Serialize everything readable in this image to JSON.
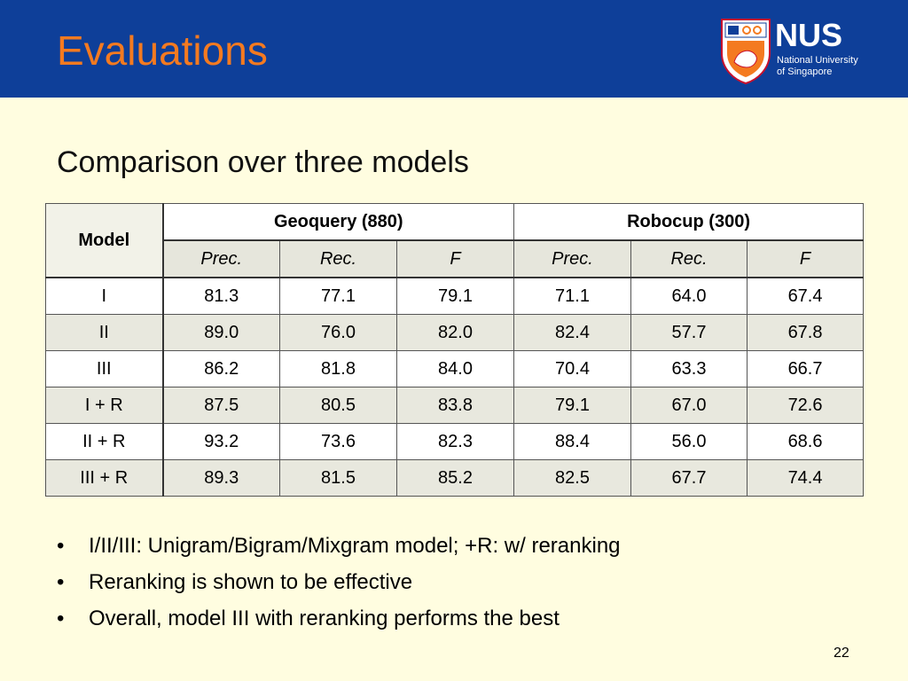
{
  "header": {
    "title": "Evaluations",
    "logo": {
      "name": "NUS",
      "line1": "National University",
      "line2": "of Singapore"
    }
  },
  "subtitle": "Comparison over three models",
  "table": {
    "model_header": "Model",
    "groups": [
      "Geoquery (880)",
      "Robocup (300)"
    ],
    "subheaders": [
      "Prec.",
      "Rec.",
      "F",
      "Prec.",
      "Rec.",
      "F"
    ],
    "rows": [
      {
        "model": "I",
        "cells": [
          {
            "v": "81.3",
            "b": false
          },
          {
            "v": "77.1",
            "b": false
          },
          {
            "v": "79.1",
            "b": false
          },
          {
            "v": "71.1",
            "b": false
          },
          {
            "v": "64.0",
            "b": true
          },
          {
            "v": "67.4",
            "b": false
          }
        ]
      },
      {
        "model": "II",
        "cells": [
          {
            "v": "89.0",
            "b": true
          },
          {
            "v": "76.0",
            "b": false
          },
          {
            "v": "82.0",
            "b": false
          },
          {
            "v": "82.4",
            "b": true
          },
          {
            "v": "57.7",
            "b": false
          },
          {
            "v": "67.8",
            "b": true
          }
        ]
      },
      {
        "model": "III",
        "cells": [
          {
            "v": "86.2",
            "b": false
          },
          {
            "v": "81.8",
            "b": true
          },
          {
            "v": "84.0",
            "b": true
          },
          {
            "v": "70.4",
            "b": false
          },
          {
            "v": "63.3",
            "b": false
          },
          {
            "v": "66.7",
            "b": false
          }
        ]
      },
      {
        "model": "I + R",
        "cells": [
          {
            "v": "87.5",
            "b": false
          },
          {
            "v": "80.5",
            "b": false
          },
          {
            "v": "83.8",
            "b": false
          },
          {
            "v": "79.1",
            "b": false
          },
          {
            "v": "67.0",
            "b": false
          },
          {
            "v": "72.6",
            "b": false
          }
        ]
      },
      {
        "model": "II + R",
        "cells": [
          {
            "v": "93.2",
            "b": false
          },
          {
            "v": "73.6",
            "b": false
          },
          {
            "v": "82.3",
            "b": false
          },
          {
            "v": "88.4",
            "b": false
          },
          {
            "v": "56.0",
            "b": false
          },
          {
            "v": "68.6",
            "b": false
          }
        ]
      },
      {
        "model": "III + R",
        "cells": [
          {
            "v": "89.3",
            "b": false
          },
          {
            "v": "81.5",
            "b": true
          },
          {
            "v": "85.2",
            "b": true
          },
          {
            "v": "82.5",
            "b": false
          },
          {
            "v": "67.7",
            "b": true
          },
          {
            "v": "74.4",
            "b": true
          }
        ]
      }
    ]
  },
  "bullets": [
    "I/II/III: Unigram/Bigram/Mixgram model; +R: w/ reranking",
    "Reranking is shown to be effective",
    "Overall, model III with reranking performs the best"
  ],
  "bullet_symbol": "•",
  "page_number": "22",
  "colors": {
    "header_bg": "#0e3f99",
    "title": "#f47a20",
    "slide_bg": "#fffde0"
  }
}
